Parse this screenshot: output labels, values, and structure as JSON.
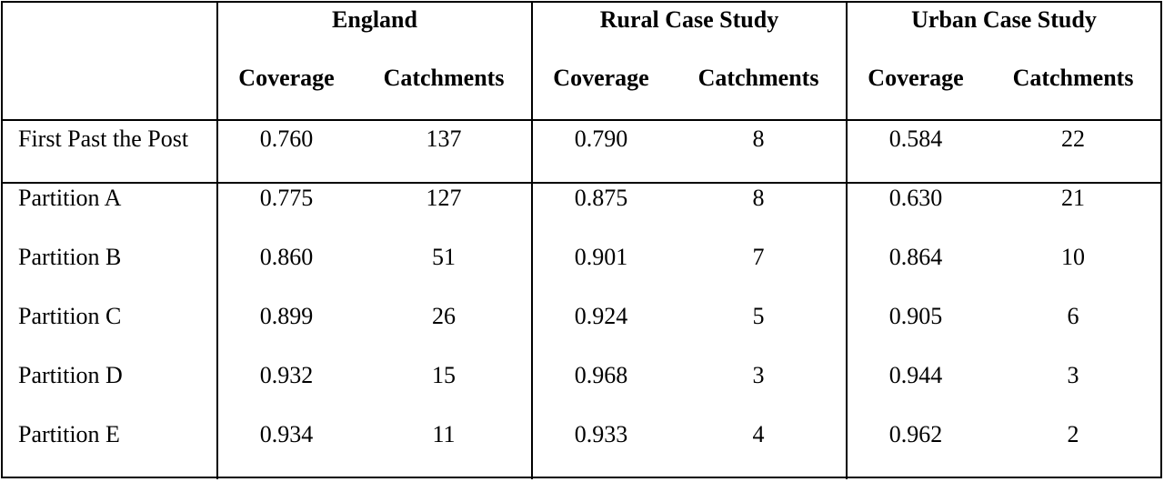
{
  "groups": [
    {
      "label": "England",
      "sub": [
        "Coverage",
        "Catchments"
      ]
    },
    {
      "label": "Rural Case Study",
      "sub": [
        "Coverage",
        "Catchments"
      ]
    },
    {
      "label": "Urban Case Study",
      "sub": [
        "Coverage",
        "Catchments"
      ]
    }
  ],
  "rows": [
    {
      "label": "First Past the Post",
      "values": [
        "0.760",
        "137",
        "0.790",
        "8",
        "0.584",
        "22"
      ]
    },
    {
      "label": "Partition A",
      "values": [
        "0.775",
        "127",
        "0.875",
        "8",
        "0.630",
        "21"
      ]
    },
    {
      "label": "Partition B",
      "values": [
        "0.860",
        "51",
        "0.901",
        "7",
        "0.864",
        "10"
      ]
    },
    {
      "label": "Partition C",
      "values": [
        "0.899",
        "26",
        "0.924",
        "5",
        "0.905",
        "6"
      ]
    },
    {
      "label": "Partition D",
      "values": [
        "0.932",
        "15",
        "0.968",
        "3",
        "0.944",
        "3"
      ]
    },
    {
      "label": "Partition E",
      "values": [
        "0.934",
        "11",
        "0.933",
        "4",
        "0.962",
        "2"
      ]
    }
  ]
}
